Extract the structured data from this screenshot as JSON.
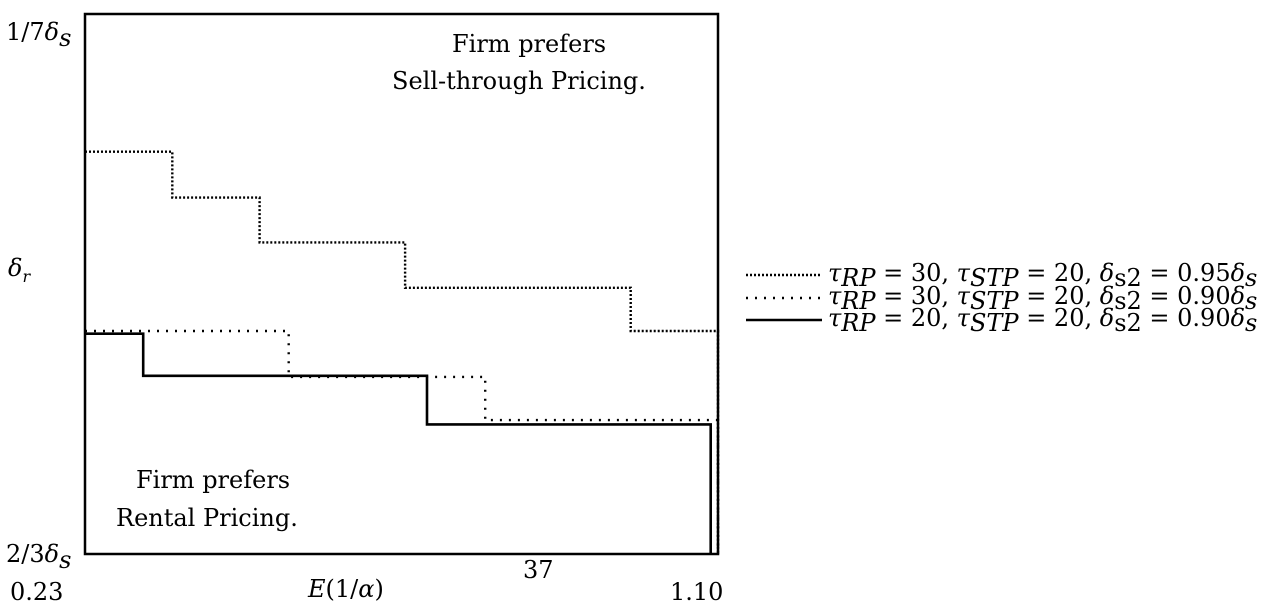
{
  "chart_data": {
    "type": "line",
    "xlabel": "E(1/α)",
    "ylabel": "δr",
    "x_ticks": [
      {
        "value": 0.23,
        "label": "0.23"
      },
      {
        "value": 1.1,
        "label": "1.10"
      }
    ],
    "y_ticks": [
      {
        "position": "top",
        "label": "1/7δs"
      },
      {
        "position": "middle",
        "label": "δr"
      },
      {
        "position": "bottom",
        "label": "2/3δs"
      }
    ],
    "xlim": [
      0.23,
      1.1
    ],
    "ylim_labels": [
      "2/3δs",
      "1/7δs"
    ],
    "annotations": {
      "top_right": [
        "Firm prefers",
        "Sell-through Pricing."
      ],
      "bottom_left": [
        "Firm prefers",
        "Rental Pricing."
      ]
    },
    "page_number": "37",
    "series": [
      {
        "name": "τRP = 30, τSTP = 20, δs2 = 0.95δs",
        "style": "dense-dotted",
        "color": "#000000",
        "points": [
          [
            0.23,
            0.745
          ],
          [
            0.35,
            0.745
          ],
          [
            0.35,
            0.66
          ],
          [
            0.47,
            0.66
          ],
          [
            0.47,
            0.577
          ],
          [
            0.67,
            0.577
          ],
          [
            0.67,
            0.493
          ],
          [
            0.98,
            0.493
          ],
          [
            0.98,
            0.413
          ],
          [
            1.1,
            0.413
          ],
          [
            1.1,
            0.0
          ]
        ]
      },
      {
        "name": "τRP = 30, τSTP = 20, δs2 = 0.90δs",
        "style": "sparse-dotted",
        "color": "#000000",
        "points": [
          [
            0.23,
            0.413
          ],
          [
            0.51,
            0.413
          ],
          [
            0.51,
            0.328
          ],
          [
            0.78,
            0.328
          ],
          [
            0.78,
            0.248
          ],
          [
            1.1,
            0.248
          ],
          [
            1.1,
            0.0
          ]
        ]
      },
      {
        "name": "τRP = 20, τSTP = 20, δs2 = 0.90δs",
        "style": "solid",
        "color": "#000000",
        "points": [
          [
            0.23,
            0.408
          ],
          [
            0.31,
            0.408
          ],
          [
            0.31,
            0.33
          ],
          [
            0.7,
            0.33
          ],
          [
            0.7,
            0.24
          ],
          [
            1.09,
            0.24
          ],
          [
            1.09,
            0.0
          ]
        ]
      }
    ],
    "legend": {
      "position": "right",
      "entries": [
        {
          "prefix": "τ",
          "sub1": "RP",
          "eq1": " = 30, ",
          "tau2": "τ",
          "sub2": "STP",
          "eq2": " = 20, ",
          "delta": "δ",
          "sub3": "s2",
          "eq3": " = 0.95",
          "delta2": "δ",
          "sub4": "s"
        },
        {
          "prefix": "τ",
          "sub1": "RP",
          "eq1": " = 30, ",
          "tau2": "τ",
          "sub2": "STP",
          "eq2": " = 20, ",
          "delta": "δ",
          "sub3": "s2",
          "eq3": " = 0.90",
          "delta2": "δ",
          "sub4": "s"
        },
        {
          "prefix": "τ",
          "sub1": "RP",
          "eq1": " = 20, ",
          "tau2": "τ",
          "sub2": "STP",
          "eq2": " = 20, ",
          "delta": "δ",
          "sub3": "s2",
          "eq3": " = 0.90",
          "delta2": "δ",
          "sub4": "s"
        }
      ]
    }
  }
}
